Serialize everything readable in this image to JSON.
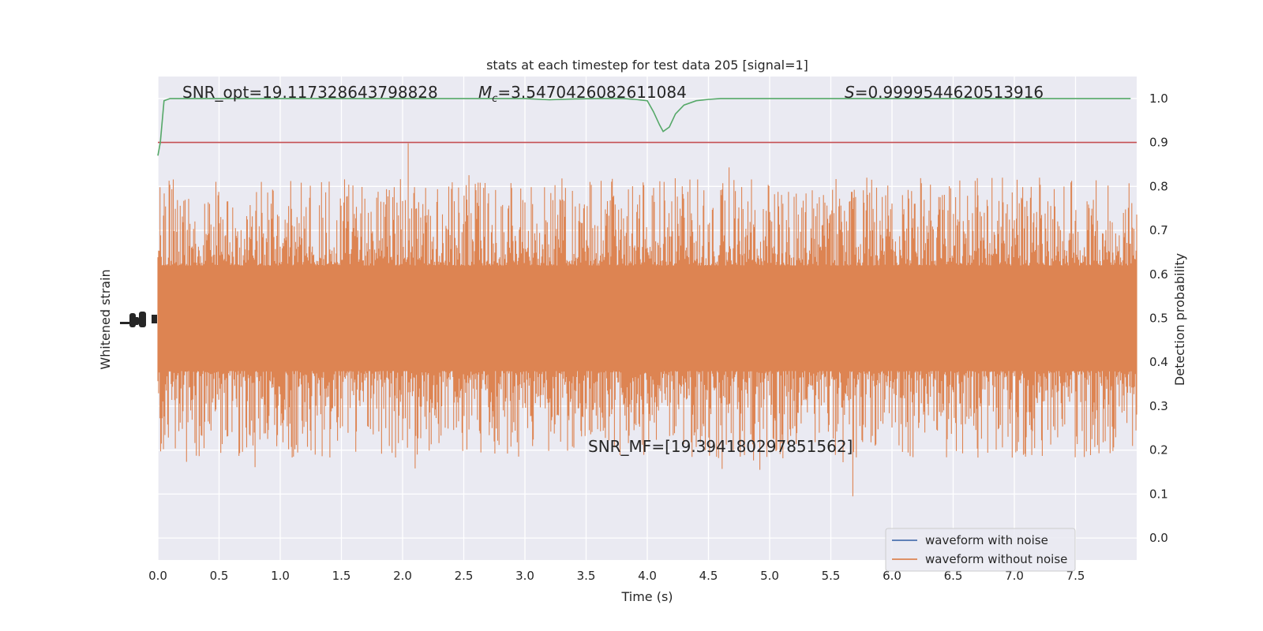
{
  "chart_data": {
    "type": "line",
    "title": "stats at each timestep for test data 205 [signal=1]",
    "xlabel": "Time (s)",
    "ylabel_left": "Whitened strain",
    "ylabel_right": "Detection probability",
    "xlim": [
      0.0,
      8.0
    ],
    "ylim_right": [
      -0.05,
      1.05
    ],
    "x_ticks": [
      "0.0",
      "0.5",
      "1.0",
      "1.5",
      "2.0",
      "2.5",
      "3.0",
      "3.5",
      "4.0",
      "4.5",
      "5.0",
      "5.5",
      "6.0",
      "6.5",
      "7.0",
      "7.5"
    ],
    "y_ticks_right": [
      "0.0",
      "0.1",
      "0.2",
      "0.3",
      "0.4",
      "0.5",
      "0.6",
      "0.7",
      "0.8",
      "0.9",
      "1.0"
    ],
    "grid": true,
    "legend_position": "lower-right",
    "annotations": {
      "snr_opt": "SNR_opt=19.117328643798828",
      "chirp_mass_symbol": "M",
      "chirp_mass_sub": "c",
      "chirp_mass_value": "=3.5470426082611084",
      "s_symbol": "S",
      "s_value": "=0.9999544620513916",
      "snr_mf": "SNR_MF=[19.394180297851562]"
    },
    "series": [
      {
        "name": "waveform with noise",
        "color": "#4c72b0"
      },
      {
        "name": "waveform without noise",
        "color": "#dd8452"
      }
    ],
    "threshold": {
      "y": 0.9,
      "color": "#c44e52"
    },
    "detection_probability": {
      "color": "#55a868",
      "x": [
        0.0,
        0.02,
        0.05,
        0.1,
        0.2,
        0.5,
        1.0,
        1.5,
        2.0,
        2.5,
        3.0,
        3.2,
        3.4,
        3.6,
        3.8,
        3.9,
        4.0,
        4.05,
        4.1,
        4.13,
        4.18,
        4.23,
        4.3,
        4.4,
        4.5,
        4.6,
        4.8,
        5.0,
        6.0,
        7.0,
        7.95
      ],
      "y": [
        0.87,
        0.9,
        0.995,
        1.0,
        1.0,
        1.0,
        1.0,
        1.0,
        1.0,
        1.0,
        1.0,
        0.997,
        0.999,
        1.0,
        1.0,
        0.998,
        0.995,
        0.97,
        0.94,
        0.925,
        0.935,
        0.965,
        0.985,
        0.995,
        0.998,
        1.0,
        1.0,
        1.0,
        1.0,
        1.0,
        1.0
      ]
    }
  }
}
